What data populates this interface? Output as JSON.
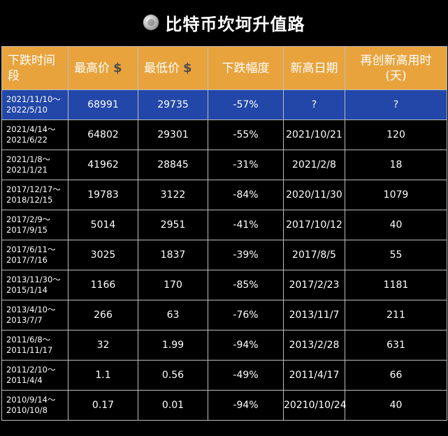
{
  "title": "比特币坎坷升值路",
  "headers": {
    "period": "下跌时间段",
    "high": "最高价",
    "low": "最低价",
    "drop": "下跌幅度",
    "new_high_date": "新高日期",
    "days": "再创新高用时(天)",
    "currency_symbol": "$"
  },
  "chart_data": {
    "type": "table",
    "columns": [
      "下跌时间段",
      "最高价$",
      "最低价$",
      "下跌幅度",
      "新高日期",
      "再创新高用时(天)"
    ],
    "rows": [
      {
        "period_start": "2021/11/10～",
        "period_end": "2022/5/10",
        "high": "68991",
        "low": "29735",
        "drop": "-57%",
        "new_high_date": "?",
        "days": "?"
      },
      {
        "period_start": "2021/4/14～",
        "period_end": "2021/6/22",
        "high": "64802",
        "low": "29301",
        "drop": "-55%",
        "new_high_date": "2021/10/21",
        "days": "120"
      },
      {
        "period_start": "2021/1/8～",
        "period_end": "2021/1/21",
        "high": "41962",
        "low": "28845",
        "drop": "-31%",
        "new_high_date": "2021/2/8",
        "days": "18"
      },
      {
        "period_start": "2017/12/17～",
        "period_end": "2018/12/15",
        "high": "19783",
        "low": "3122",
        "drop": "-84%",
        "new_high_date": "2020/11/30",
        "days": "1079"
      },
      {
        "period_start": "2017/2/9～",
        "period_end": "2017/9/15",
        "high": "5014",
        "low": "2951",
        "drop": "-41%",
        "new_high_date": "2017/10/12",
        "days": "40"
      },
      {
        "period_start": "2017/6/11～",
        "period_end": "2017/7/16",
        "high": "3025",
        "low": "1837",
        "drop": "-39%",
        "new_high_date": "2017/8/5",
        "days": "55"
      },
      {
        "period_start": "2013/11/30～",
        "period_end": "2015/1/14",
        "high": "1166",
        "low": "170",
        "drop": "-85%",
        "new_high_date": "2017/2/23",
        "days": "1181"
      },
      {
        "period_start": "2013/4/10～",
        "period_end": "2013/7/7",
        "high": "266",
        "low": "63",
        "drop": "-76%",
        "new_high_date": "2013/11/7",
        "days": "211"
      },
      {
        "period_start": "2011/6/8～",
        "period_end": "2011/11/17",
        "high": "32",
        "low": "1.99",
        "drop": "-94%",
        "new_high_date": "2013/2/28",
        "days": "631"
      },
      {
        "period_start": "2011/2/10～",
        "period_end": "2011/4/4",
        "high": "1.1",
        "low": "0.56",
        "drop": "-49%",
        "new_high_date": "2011/4/17",
        "days": "66"
      },
      {
        "period_start": "2010/9/14～",
        "period_end": "2010/10/8",
        "high": "0.17",
        "low": "0.01",
        "drop": "-94%",
        "new_high_date": "20210/10/24",
        "days": "40"
      }
    ]
  },
  "colors": {
    "header_bg": "#e8a33d",
    "highlight_row": "#2347a8",
    "background": "#000000",
    "text": "#ffffff"
  }
}
